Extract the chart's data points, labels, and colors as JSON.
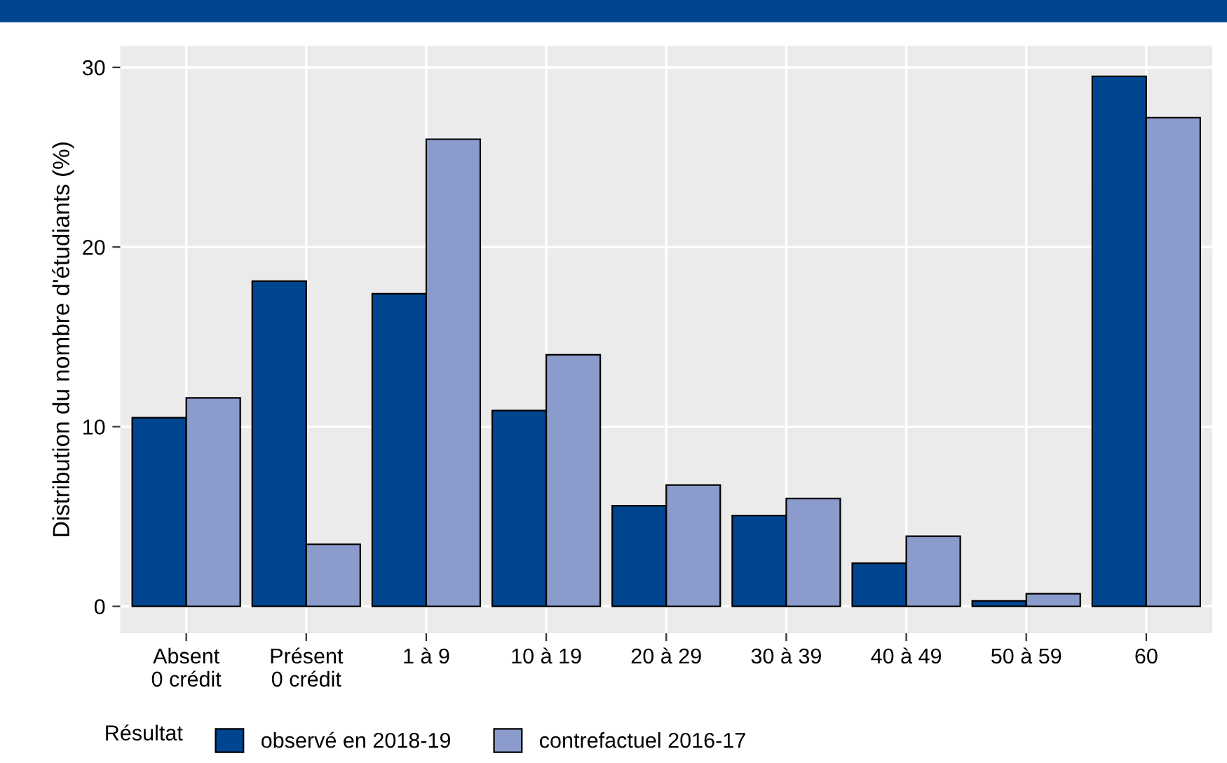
{
  "chart_data": {
    "type": "bar",
    "ylabel": "Distribution du nombre d'étudiants (%)",
    "categories": [
      "Absent\n0 crédit",
      "Présent\n0 crédit",
      "1 à 9",
      "10 à 19",
      "20 à 29",
      "30 à 39",
      "40 à 49",
      "50 à 59",
      "60"
    ],
    "series": [
      {
        "name": "observé en 2018-19",
        "color": "#00458f",
        "values": [
          10.5,
          18.1,
          17.4,
          10.9,
          5.6,
          5.05,
          2.4,
          0.3,
          29.5
        ]
      },
      {
        "name": "contrefactuel 2016-17",
        "color": "#8b9bcc",
        "values": [
          11.6,
          3.45,
          26.0,
          14.0,
          6.75,
          6.0,
          3.9,
          0.7,
          27.2
        ]
      }
    ],
    "legend_title": "Résultat",
    "legend": "bottom",
    "ylim": [
      -1.5,
      31.2
    ],
    "yticks": [
      0,
      10,
      20,
      30
    ],
    "grid": true
  }
}
